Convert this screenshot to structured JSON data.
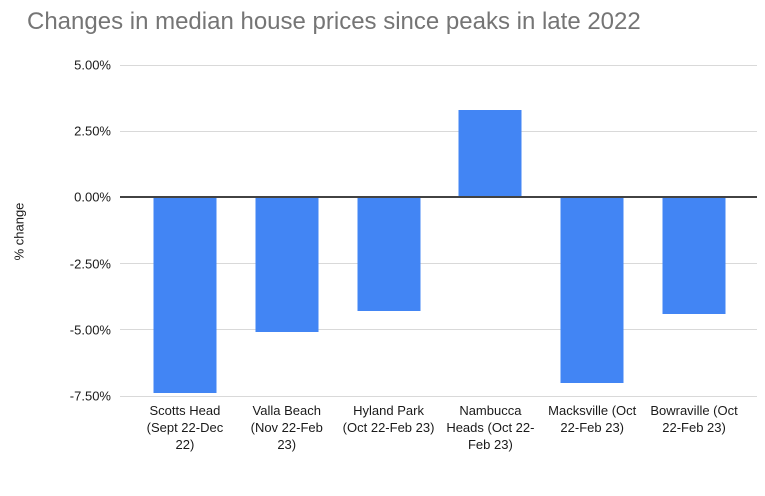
{
  "title": "Changes in median house prices since peaks in late 2022",
  "chart_data": {
    "type": "bar",
    "title": "Changes in median house prices since peaks in late 2022",
    "xlabel": "",
    "ylabel": "% change",
    "categories": [
      "Scotts Head (Sept 22-Dec 22)",
      "Valla Beach (Nov 22-Feb 23)",
      "Hyland Park (Oct 22-Feb 23)",
      "Nambucca Heads (Oct 22-Feb 23)",
      "Macksville (Oct 22-Feb 23)",
      "Bowraville (Oct 22-Feb 23)"
    ],
    "values": [
      -7.4,
      -5.1,
      -4.3,
      3.3,
      -7.0,
      -4.4
    ],
    "unit": "%",
    "ylim": [
      -7.5,
      5.0
    ],
    "yticks": [
      {
        "value": 5.0,
        "label": "5.00%"
      },
      {
        "value": 2.5,
        "label": "2.50%"
      },
      {
        "value": 0.0,
        "label": "0.00%"
      },
      {
        "value": -2.5,
        "label": "-2.50%"
      },
      {
        "value": -5.0,
        "label": "-5.00%"
      },
      {
        "value": -7.5,
        "label": "-7.50%"
      }
    ],
    "grid": true,
    "legend_position": "none",
    "colors": {
      "bar": "#4285f4",
      "title_text": "#757575",
      "axis_text": "#1a1a1a",
      "gridline": "#d9d9d9",
      "zero_line": "#424242",
      "background": "#ffffff"
    }
  }
}
